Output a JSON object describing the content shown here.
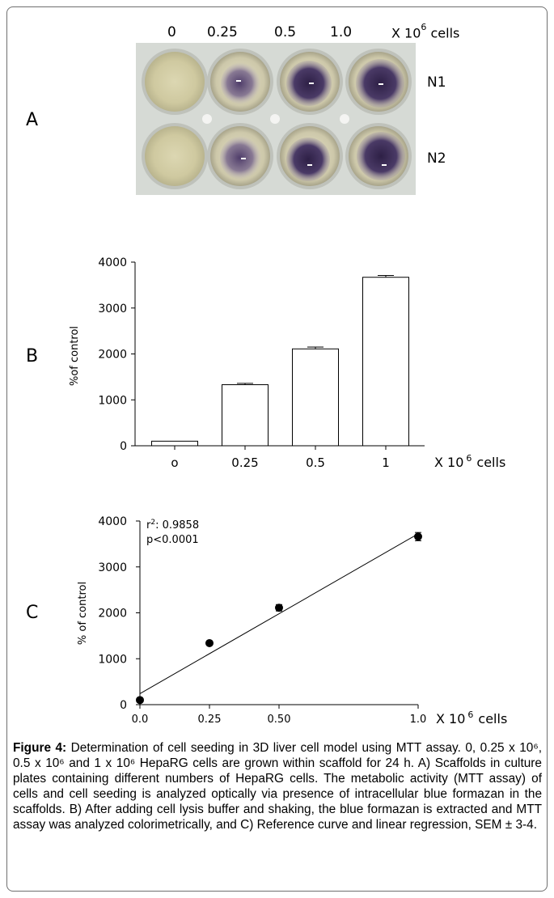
{
  "panelA": {
    "letter": "A",
    "column_labels": [
      "0",
      "0.25",
      "0.5",
      "1.0"
    ],
    "unit_prefix": "X 10",
    "unit_exp": "6",
    "unit_suffix": "cells",
    "row_labels": [
      "N1",
      "N2"
    ],
    "colors": {
      "plate": "#d4d8d2",
      "medium": "#d8d3a8",
      "formazan": "#3a2b55"
    }
  },
  "chart_data": [
    {
      "panel": "B",
      "type": "bar",
      "categories": [
        "o",
        "0.25",
        "0.5",
        "1"
      ],
      "values": [
        100,
        1330,
        2110,
        3670
      ],
      "errors": [
        0,
        30,
        40,
        40
      ],
      "ylabel": "%of control",
      "xlabel_prefix": "X 10",
      "xlabel_exp": "6",
      "xlabel_suffix": "cells",
      "ylim": [
        0,
        4000
      ],
      "yticks": [
        0,
        1000,
        2000,
        3000,
        4000
      ],
      "grid": false
    },
    {
      "panel": "C",
      "type": "scatter",
      "x": [
        0,
        0.25,
        0.5,
        1.0
      ],
      "y": [
        100,
        1340,
        2110,
        3660
      ],
      "errors": [
        0,
        40,
        70,
        90
      ],
      "fit_line": {
        "x": [
          0,
          1.0
        ],
        "y": [
          240,
          3720
        ]
      },
      "annotations": {
        "r2_prefix": "r",
        "r2_exp": "2",
        "r2_value": ": 0.9858",
        "p_value": "p<0.0001"
      },
      "ylabel": "% of control",
      "xlabel_prefix": "X 10",
      "xlabel_exp": "6",
      "xlabel_suffix": "cells",
      "xlim": [
        0,
        1.0
      ],
      "xticks": [
        "0.0",
        "0.25",
        "0.50",
        "1.0"
      ],
      "ylim": [
        0,
        4000
      ],
      "yticks": [
        0,
        1000,
        2000,
        3000,
        4000
      ],
      "grid": false
    }
  ],
  "caption": {
    "label": "Figure 4:",
    "text": " Determination of cell seeding in 3D liver cell model using MTT assay. 0, 0.25 x 10⁶, 0.5 x 10⁶ and 1 x 10⁶ HepaRG cells are grown within scaffold for 24 h. A) Scaffolds in culture plates containing different numbers of HepaRG cells. The metabolic activity (MTT assay) of cells and cell seeding is analyzed optically via presence of intracellular blue formazan in the scaffolds. B) After adding cell lysis buffer and shaking, the blue formazan is extracted and MTT assay was analyzed colorimetrically, and C) Reference curve and linear regression, SEM ± 3-4."
  }
}
